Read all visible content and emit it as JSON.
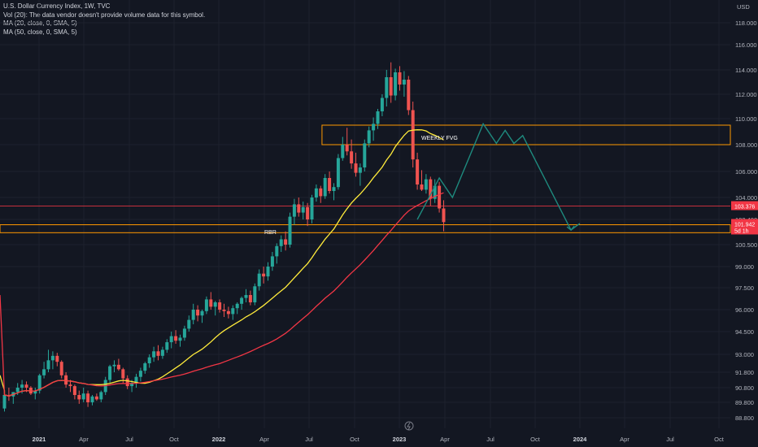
{
  "legend": {
    "title": "U.S. Dollar Currency Index, 1W, TVC",
    "vol": "Vol (20): The data vendor doesn't provide volume data for this symbol.",
    "ma20": "MA (20, close, 0, SMA, 5)",
    "ma50": "MA (50, close, 0, SMA, 5)"
  },
  "colors": {
    "background": "#131722",
    "up": "#26a69a",
    "down": "#ef5350",
    "ma20": "#ffeb3b",
    "ma50": "#f23645",
    "zone": "#ff9800",
    "projection": "#1e8a7e",
    "hline": "#f23645"
  },
  "chart_data": {
    "type": "candlestick",
    "currency": "USD",
    "y_ticks": [
      "118.000",
      "116.000",
      "114.000",
      "112.000",
      "110.000",
      "108.000",
      "106.000",
      "104.000",
      "102.400",
      "100.500",
      "99.000",
      "97.500",
      "96.000",
      "94.500",
      "93.000",
      "91.800",
      "90.800",
      "89.800",
      "88.800"
    ],
    "x_ticks": [
      {
        "label": "2021",
        "bold": true
      },
      {
        "label": "Apr",
        "bold": false
      },
      {
        "label": "Jul",
        "bold": false
      },
      {
        "label": "Oct",
        "bold": false
      },
      {
        "label": "2022",
        "bold": true
      },
      {
        "label": "Apr",
        "bold": false
      },
      {
        "label": "Jul",
        "bold": false
      },
      {
        "label": "Oct",
        "bold": false
      },
      {
        "label": "2023",
        "bold": true
      },
      {
        "label": "Apr",
        "bold": false
      },
      {
        "label": "Jul",
        "bold": false
      },
      {
        "label": "Oct",
        "bold": false
      },
      {
        "label": "2024",
        "bold": true
      },
      {
        "label": "Apr",
        "bold": false
      },
      {
        "label": "Jul",
        "bold": false
      },
      {
        "label": "Oct",
        "bold": false
      }
    ],
    "price_labels": [
      {
        "text": "103.376",
        "value": 103.376
      },
      {
        "text": "101.942",
        "value": 101.942,
        "sub": "5d 1h"
      }
    ],
    "zones": [
      {
        "label": "WEEKLY FVG",
        "from_week": 118,
        "to_week": 232,
        "low": 108.0,
        "high": 109.5
      },
      {
        "label": "RBR",
        "from_week": 0,
        "to_week": 232,
        "low": 101.4,
        "high": 102.0
      }
    ],
    "horizontal_line": 103.376,
    "projection": [
      [
        132,
        102.4
      ],
      [
        134,
        103.6
      ],
      [
        137,
        105.5
      ],
      [
        140,
        104.0
      ],
      [
        147,
        109.6
      ],
      [
        150,
        108.1
      ],
      [
        152,
        109.1
      ],
      [
        154,
        108.1
      ],
      [
        156,
        108.7
      ],
      [
        167,
        101.6
      ],
      [
        169,
        102.1
      ]
    ],
    "ohlc": [
      [
        89.4,
        90.6,
        89.2,
        90.3
      ],
      [
        90.3,
        90.8,
        89.9,
        90.2
      ],
      [
        90.2,
        90.5,
        89.7,
        90.5
      ],
      [
        90.5,
        91.1,
        90.3,
        90.8
      ],
      [
        90.8,
        91.3,
        90.4,
        91.0
      ],
      [
        91.0,
        91.2,
        90.5,
        90.8
      ],
      [
        90.8,
        90.9,
        90.3,
        90.4
      ],
      [
        90.4,
        90.8,
        90.0,
        90.6
      ],
      [
        90.6,
        91.7,
        90.4,
        91.6
      ],
      [
        91.6,
        92.5,
        91.4,
        92.0
      ],
      [
        92.0,
        93.3,
        91.8,
        92.6
      ],
      [
        92.6,
        93.2,
        92.0,
        92.9
      ],
      [
        92.9,
        93.1,
        92.2,
        92.5
      ],
      [
        92.5,
        92.6,
        91.4,
        91.6
      ],
      [
        91.6,
        91.8,
        90.8,
        91.0
      ],
      [
        91.0,
        91.3,
        90.5,
        90.9
      ],
      [
        90.9,
        91.0,
        90.0,
        90.3
      ],
      [
        90.3,
        90.6,
        89.7,
        90.0
      ],
      [
        90.0,
        90.8,
        89.8,
        90.4
      ],
      [
        90.4,
        90.6,
        89.5,
        89.8
      ],
      [
        89.8,
        90.3,
        89.6,
        90.2
      ],
      [
        90.2,
        90.4,
        89.9,
        90.0
      ],
      [
        90.0,
        90.6,
        89.8,
        90.5
      ],
      [
        90.5,
        91.5,
        90.3,
        91.3
      ],
      [
        91.3,
        92.3,
        91.1,
        92.2
      ],
      [
        92.2,
        92.6,
        91.8,
        92.3
      ],
      [
        92.3,
        92.7,
        91.9,
        92.0
      ],
      [
        92.0,
        92.1,
        91.1,
        91.4
      ],
      [
        91.4,
        91.6,
        90.7,
        90.9
      ],
      [
        90.9,
        91.3,
        90.5,
        91.1
      ],
      [
        91.1,
        91.7,
        90.8,
        91.5
      ],
      [
        91.5,
        92.1,
        91.2,
        91.9
      ],
      [
        91.9,
        92.5,
        91.7,
        92.4
      ],
      [
        92.4,
        93.0,
        92.1,
        92.8
      ],
      [
        92.8,
        93.5,
        92.5,
        93.2
      ],
      [
        93.2,
        93.6,
        92.6,
        92.9
      ],
      [
        92.9,
        93.5,
        92.7,
        93.3
      ],
      [
        93.3,
        94.0,
        93.1,
        93.8
      ],
      [
        93.8,
        94.5,
        93.4,
        94.2
      ],
      [
        94.2,
        94.6,
        93.7,
        93.9
      ],
      [
        93.9,
        94.3,
        93.5,
        94.1
      ],
      [
        94.1,
        94.9,
        93.9,
        94.7
      ],
      [
        94.7,
        95.6,
        94.5,
        95.3
      ],
      [
        95.3,
        96.4,
        95.0,
        96.0
      ],
      [
        96.0,
        96.3,
        95.2,
        95.6
      ],
      [
        95.6,
        96.0,
        95.1,
        95.9
      ],
      [
        95.9,
        96.9,
        95.7,
        96.7
      ],
      [
        96.7,
        97.2,
        96.0,
        96.2
      ],
      [
        96.2,
        96.6,
        95.6,
        96.5
      ],
      [
        96.5,
        96.7,
        95.8,
        96.0
      ],
      [
        96.0,
        96.4,
        95.5,
        95.9
      ],
      [
        95.9,
        96.2,
        95.4,
        95.7
      ],
      [
        95.7,
        96.3,
        95.3,
        96.1
      ],
      [
        96.1,
        96.5,
        95.7,
        96.4
      ],
      [
        96.4,
        96.9,
        96.0,
        96.8
      ],
      [
        96.8,
        97.4,
        96.5,
        97.0
      ],
      [
        97.0,
        97.3,
        96.3,
        96.5
      ],
      [
        96.5,
        97.8,
        96.3,
        97.6
      ],
      [
        97.6,
        98.8,
        97.3,
        98.5
      ],
      [
        98.5,
        99.0,
        97.8,
        98.3
      ],
      [
        98.3,
        99.3,
        98.0,
        99.0
      ],
      [
        99.0,
        100.0,
        98.7,
        99.7
      ],
      [
        99.7,
        100.6,
        99.2,
        100.4
      ],
      [
        100.4,
        101.2,
        100.0,
        100.9
      ],
      [
        100.9,
        101.5,
        100.1,
        100.5
      ],
      [
        100.5,
        102.9,
        100.3,
        102.6
      ],
      [
        102.6,
        103.9,
        102.0,
        103.5
      ],
      [
        103.5,
        104.0,
        102.6,
        102.9
      ],
      [
        102.9,
        103.7,
        102.4,
        103.3
      ],
      [
        103.3,
        103.6,
        101.9,
        102.4
      ],
      [
        102.4,
        104.2,
        102.1,
        104.0
      ],
      [
        104.0,
        105.0,
        103.7,
        104.7
      ],
      [
        104.7,
        104.9,
        103.6,
        104.1
      ],
      [
        104.1,
        105.8,
        103.9,
        105.5
      ],
      [
        105.5,
        106.0,
        104.3,
        104.5
      ],
      [
        104.5,
        105.1,
        103.8,
        104.8
      ],
      [
        104.8,
        107.3,
        104.6,
        107.0
      ],
      [
        107.0,
        108.6,
        106.8,
        108.0
      ],
      [
        108.0,
        109.3,
        107.2,
        107.5
      ],
      [
        107.5,
        108.4,
        106.2,
        106.6
      ],
      [
        106.6,
        107.4,
        105.6,
        105.9
      ],
      [
        105.9,
        106.6,
        104.9,
        106.3
      ],
      [
        106.3,
        108.4,
        106.0,
        108.1
      ],
      [
        108.1,
        109.4,
        107.8,
        109.1
      ],
      [
        109.1,
        110.1,
        108.3,
        109.6
      ],
      [
        109.6,
        110.8,
        109.2,
        110.6
      ],
      [
        110.6,
        112.0,
        110.2,
        111.7
      ],
      [
        111.7,
        114.0,
        111.0,
        113.4
      ],
      [
        113.4,
        114.6,
        111.3,
        111.9
      ],
      [
        111.9,
        114.1,
        111.5,
        113.8
      ],
      [
        113.8,
        114.3,
        112.3,
        112.8
      ],
      [
        112.8,
        113.9,
        111.8,
        113.2
      ],
      [
        113.2,
        113.5,
        110.3,
        110.7
      ],
      [
        110.7,
        111.4,
        106.3,
        106.9
      ],
      [
        106.9,
        107.4,
        104.6,
        105.0
      ],
      [
        105.0,
        106.1,
        104.5,
        104.6
      ],
      [
        104.6,
        105.8,
        104.3,
        105.4
      ],
      [
        105.4,
        105.6,
        103.4,
        103.9
      ],
      [
        103.9,
        105.4,
        103.6,
        104.9
      ],
      [
        104.9,
        105.2,
        102.9,
        103.2
      ],
      [
        103.2,
        103.8,
        101.5,
        102.2
      ]
    ]
  }
}
